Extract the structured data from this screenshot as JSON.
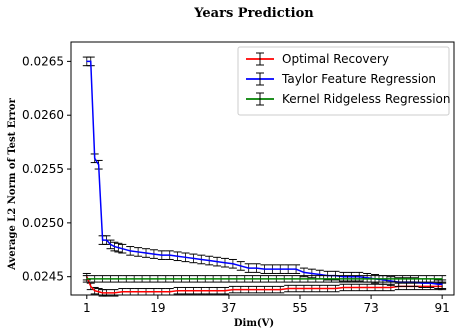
{
  "chart_data": {
    "type": "line",
    "title": "Years Prediction",
    "xlabel": "Dim(V)",
    "ylabel": "Average L2 Norm of Test Error",
    "xlim": [
      -3,
      94
    ],
    "ylim": [
      0.02433,
      0.02668
    ],
    "xticks": [
      1,
      19,
      37,
      55,
      73,
      91
    ],
    "yticks": [
      0.0245,
      0.025,
      0.0255,
      0.026,
      0.0265
    ],
    "ytick_labels": [
      "0.0245",
      "0.0250",
      "0.0255",
      "0.0260",
      "0.0265"
    ],
    "legend_position": "top-right",
    "grid": false,
    "series": [
      {
        "name": "Optimal Recovery",
        "color": "#ff0000",
        "x": [
          1,
          2,
          3,
          4,
          5,
          6,
          8,
          10,
          12,
          14,
          16,
          18,
          20,
          22,
          24,
          26,
          28,
          30,
          32,
          34,
          36,
          38,
          40,
          42,
          44,
          46,
          48,
          50,
          52,
          54,
          56,
          58,
          60,
          62,
          64,
          66,
          68,
          70,
          72,
          74,
          76,
          78,
          80,
          82,
          84,
          86,
          88,
          90,
          91
        ],
        "y": [
          0.0245,
          0.02441,
          0.02437,
          0.02436,
          0.02435,
          0.02435,
          0.02435,
          0.02436,
          0.02436,
          0.02436,
          0.02436,
          0.02436,
          0.02436,
          0.02436,
          0.02437,
          0.02437,
          0.02437,
          0.02437,
          0.02437,
          0.02437,
          0.02437,
          0.02438,
          0.02438,
          0.02438,
          0.02438,
          0.02438,
          0.02438,
          0.02438,
          0.02439,
          0.02439,
          0.02439,
          0.02439,
          0.02439,
          0.02439,
          0.02439,
          0.0244,
          0.0244,
          0.0244,
          0.0244,
          0.0244,
          0.0244,
          0.0244,
          0.02441,
          0.02441,
          0.02441,
          0.02441,
          0.02441,
          0.02441,
          0.02441
        ],
        "err": 3e-05
      },
      {
        "name": "Taylor Feature Regression",
        "color": "#0000ff",
        "x": [
          1,
          2,
          3,
          4,
          5,
          6,
          7,
          8,
          9,
          10,
          12,
          14,
          16,
          18,
          20,
          22,
          24,
          26,
          28,
          30,
          32,
          34,
          36,
          38,
          40,
          42,
          44,
          46,
          48,
          50,
          52,
          54,
          56,
          58,
          60,
          62,
          64,
          66,
          68,
          70,
          72,
          74,
          76,
          78,
          80,
          82,
          84,
          86,
          88,
          90,
          91
        ],
        "y": [
          0.0265,
          0.0265,
          0.0256,
          0.02554,
          0.02484,
          0.02484,
          0.0248,
          0.02478,
          0.02477,
          0.02476,
          0.02474,
          0.02473,
          0.02472,
          0.02471,
          0.0247,
          0.0247,
          0.02469,
          0.02468,
          0.02467,
          0.02466,
          0.02465,
          0.02464,
          0.02463,
          0.02462,
          0.0246,
          0.02458,
          0.02458,
          0.02457,
          0.02457,
          0.02457,
          0.02457,
          0.02457,
          0.02454,
          0.02453,
          0.02452,
          0.02451,
          0.02451,
          0.0245,
          0.0245,
          0.0245,
          0.02449,
          0.02448,
          0.02447,
          0.02446,
          0.02445,
          0.02445,
          0.02445,
          0.02444,
          0.02444,
          0.02443,
          0.02443
        ],
        "err": 4e-05
      },
      {
        "name": "Kernel Ridgeless Regression",
        "color": "#008000",
        "x": [
          1,
          91
        ],
        "y": [
          0.02448,
          0.02448
        ],
        "err": 3e-05
      }
    ]
  }
}
